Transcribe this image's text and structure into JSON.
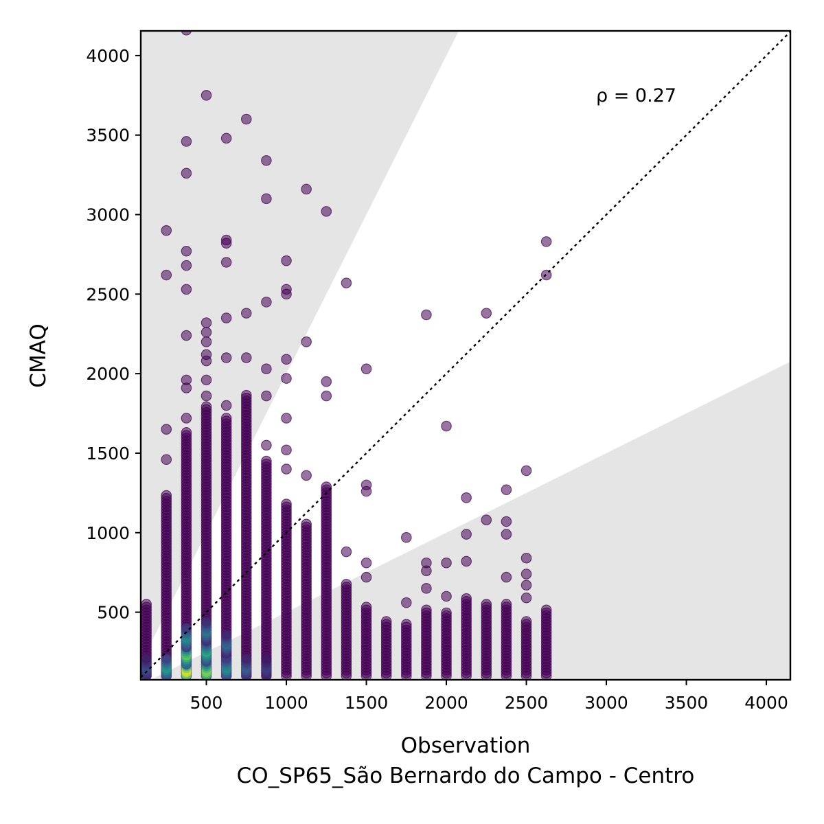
{
  "chart_data": {
    "type": "scatter",
    "xlabel": "Observation",
    "xlabel_sub": "CO_SP65_São Bernardo do Campo - Centro",
    "ylabel": "CMAQ",
    "xlim": [
      90,
      4150
    ],
    "ylim": [
      75,
      4155
    ],
    "x_ticks": [
      500,
      1000,
      1500,
      2000,
      2500,
      3000,
      3500,
      4000
    ],
    "y_ticks": [
      500,
      1000,
      1500,
      2000,
      2500,
      3000,
      3500,
      4000
    ],
    "annotation": "ρ = 0.27",
    "reference_line": "1:1 dotted",
    "shaded_regions": [
      {
        "lower_slope": 2.0,
        "upper_slope": "beyond plot"
      },
      {
        "lower_slope": 0.0,
        "upper_slope": 0.5
      }
    ],
    "grid": false,
    "colors": {
      "point_low_density": "#440154",
      "point_mid_density": "#21918c",
      "point_high_density": "#fde725",
      "shade": "#e5e5e5",
      "reference_line": "#000000"
    },
    "columns": [
      {
        "x": 125,
        "ymin": 100,
        "ymax": 560,
        "outliers": []
      },
      {
        "x": 250,
        "ymin": 100,
        "ymax": 1250,
        "outliers": [
          1460,
          1650,
          2620,
          2900
        ]
      },
      {
        "x": 375,
        "ymin": 100,
        "ymax": 1640,
        "outliers": [
          1720,
          1910,
          1960,
          2240,
          2530,
          2680,
          2770,
          3260,
          3460,
          4160
        ]
      },
      {
        "x": 500,
        "ymin": 100,
        "ymax": 1800,
        "outliers": [
          1860,
          1960,
          2080,
          2120,
          2200,
          2260,
          2320,
          3750
        ]
      },
      {
        "x": 625,
        "ymin": 100,
        "ymax": 1720,
        "outliers": [
          1800,
          2100,
          2350,
          2700,
          2820,
          2840,
          3480
        ]
      },
      {
        "x": 750,
        "ymin": 100,
        "ymax": 1880,
        "outliers": [
          2100,
          2380,
          3600
        ]
      },
      {
        "x": 875,
        "ymin": 100,
        "ymax": 1450,
        "outliers": [
          1550,
          1860,
          2030,
          2450,
          3100,
          3340
        ]
      },
      {
        "x": 1000,
        "ymin": 100,
        "ymax": 1180,
        "outliers": [
          1400,
          1520,
          1720,
          1970,
          2090,
          2500,
          2530,
          2710
        ]
      },
      {
        "x": 1125,
        "ymin": 100,
        "ymax": 1060,
        "outliers": [
          1360,
          2200,
          3160
        ]
      },
      {
        "x": 1250,
        "ymin": 100,
        "ymax": 1300,
        "outliers": [
          1860,
          1950,
          3020
        ]
      },
      {
        "x": 1375,
        "ymin": 100,
        "ymax": 680,
        "outliers": [
          880,
          2570
        ]
      },
      {
        "x": 1500,
        "ymin": 100,
        "ymax": 540,
        "outliers": [
          720,
          810,
          1260,
          1300,
          2030
        ]
      },
      {
        "x": 1625,
        "ymin": 100,
        "ymax": 450,
        "outliers": []
      },
      {
        "x": 1750,
        "ymin": 100,
        "ymax": 430,
        "outliers": [
          560,
          970
        ]
      },
      {
        "x": 1875,
        "ymin": 100,
        "ymax": 530,
        "outliers": [
          650,
          760,
          810,
          2370
        ]
      },
      {
        "x": 2000,
        "ymin": 100,
        "ymax": 500,
        "outliers": [
          600,
          810,
          1670
        ]
      },
      {
        "x": 2125,
        "ymin": 100,
        "ymax": 600,
        "outliers": [
          820,
          990,
          1220
        ]
      },
      {
        "x": 2250,
        "ymin": 100,
        "ymax": 560,
        "outliers": [
          1080,
          2380
        ]
      },
      {
        "x": 2375,
        "ymin": 100,
        "ymax": 550,
        "outliers": [
          720,
          990,
          1070,
          1270
        ]
      },
      {
        "x": 2500,
        "ymin": 100,
        "ymax": 450,
        "outliers": [
          590,
          670,
          740,
          840,
          1390
        ]
      },
      {
        "x": 2625,
        "ymin": 100,
        "ymax": 520,
        "outliers": [
          2620,
          2830
        ]
      }
    ],
    "density_cores": [
      {
        "x": 125,
        "y": 150,
        "density": 0.25
      },
      {
        "x": 250,
        "y": 150,
        "density": 0.55
      },
      {
        "x": 375,
        "y": 130,
        "density": 1.0
      },
      {
        "x": 375,
        "y": 230,
        "density": 0.75
      },
      {
        "x": 375,
        "y": 340,
        "density": 0.5
      },
      {
        "x": 500,
        "y": 130,
        "density": 0.85
      },
      {
        "x": 500,
        "y": 250,
        "density": 0.6
      },
      {
        "x": 500,
        "y": 380,
        "density": 0.4
      },
      {
        "x": 625,
        "y": 150,
        "density": 0.5
      },
      {
        "x": 625,
        "y": 300,
        "density": 0.35
      },
      {
        "x": 750,
        "y": 150,
        "density": 0.3
      },
      {
        "x": 875,
        "y": 150,
        "density": 0.2
      }
    ]
  }
}
